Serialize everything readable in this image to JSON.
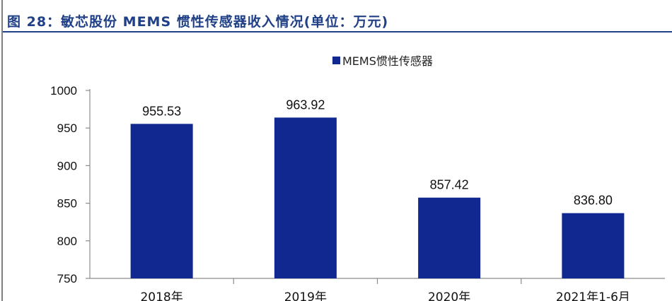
{
  "header": {
    "title": "图 28：敏芯股份 MEMS 惯性传感器收入情况(单位：万元)"
  },
  "chart_data": {
    "type": "bar",
    "categories": [
      "2018年",
      "2019年",
      "2020年",
      "2021年1-6月"
    ],
    "series": [
      {
        "name": "MEMS惯性传感器",
        "values": [
          955.53,
          963.92,
          857.42,
          836.8
        ],
        "labels": [
          "955.53",
          "963.92",
          "857.42",
          "836.80"
        ],
        "color": "#10288f"
      }
    ],
    "ylim": [
      750,
      1000
    ],
    "yticks": [
      750,
      800,
      850,
      900,
      950,
      1000
    ],
    "legend_position": "top-center",
    "grid": false
  }
}
